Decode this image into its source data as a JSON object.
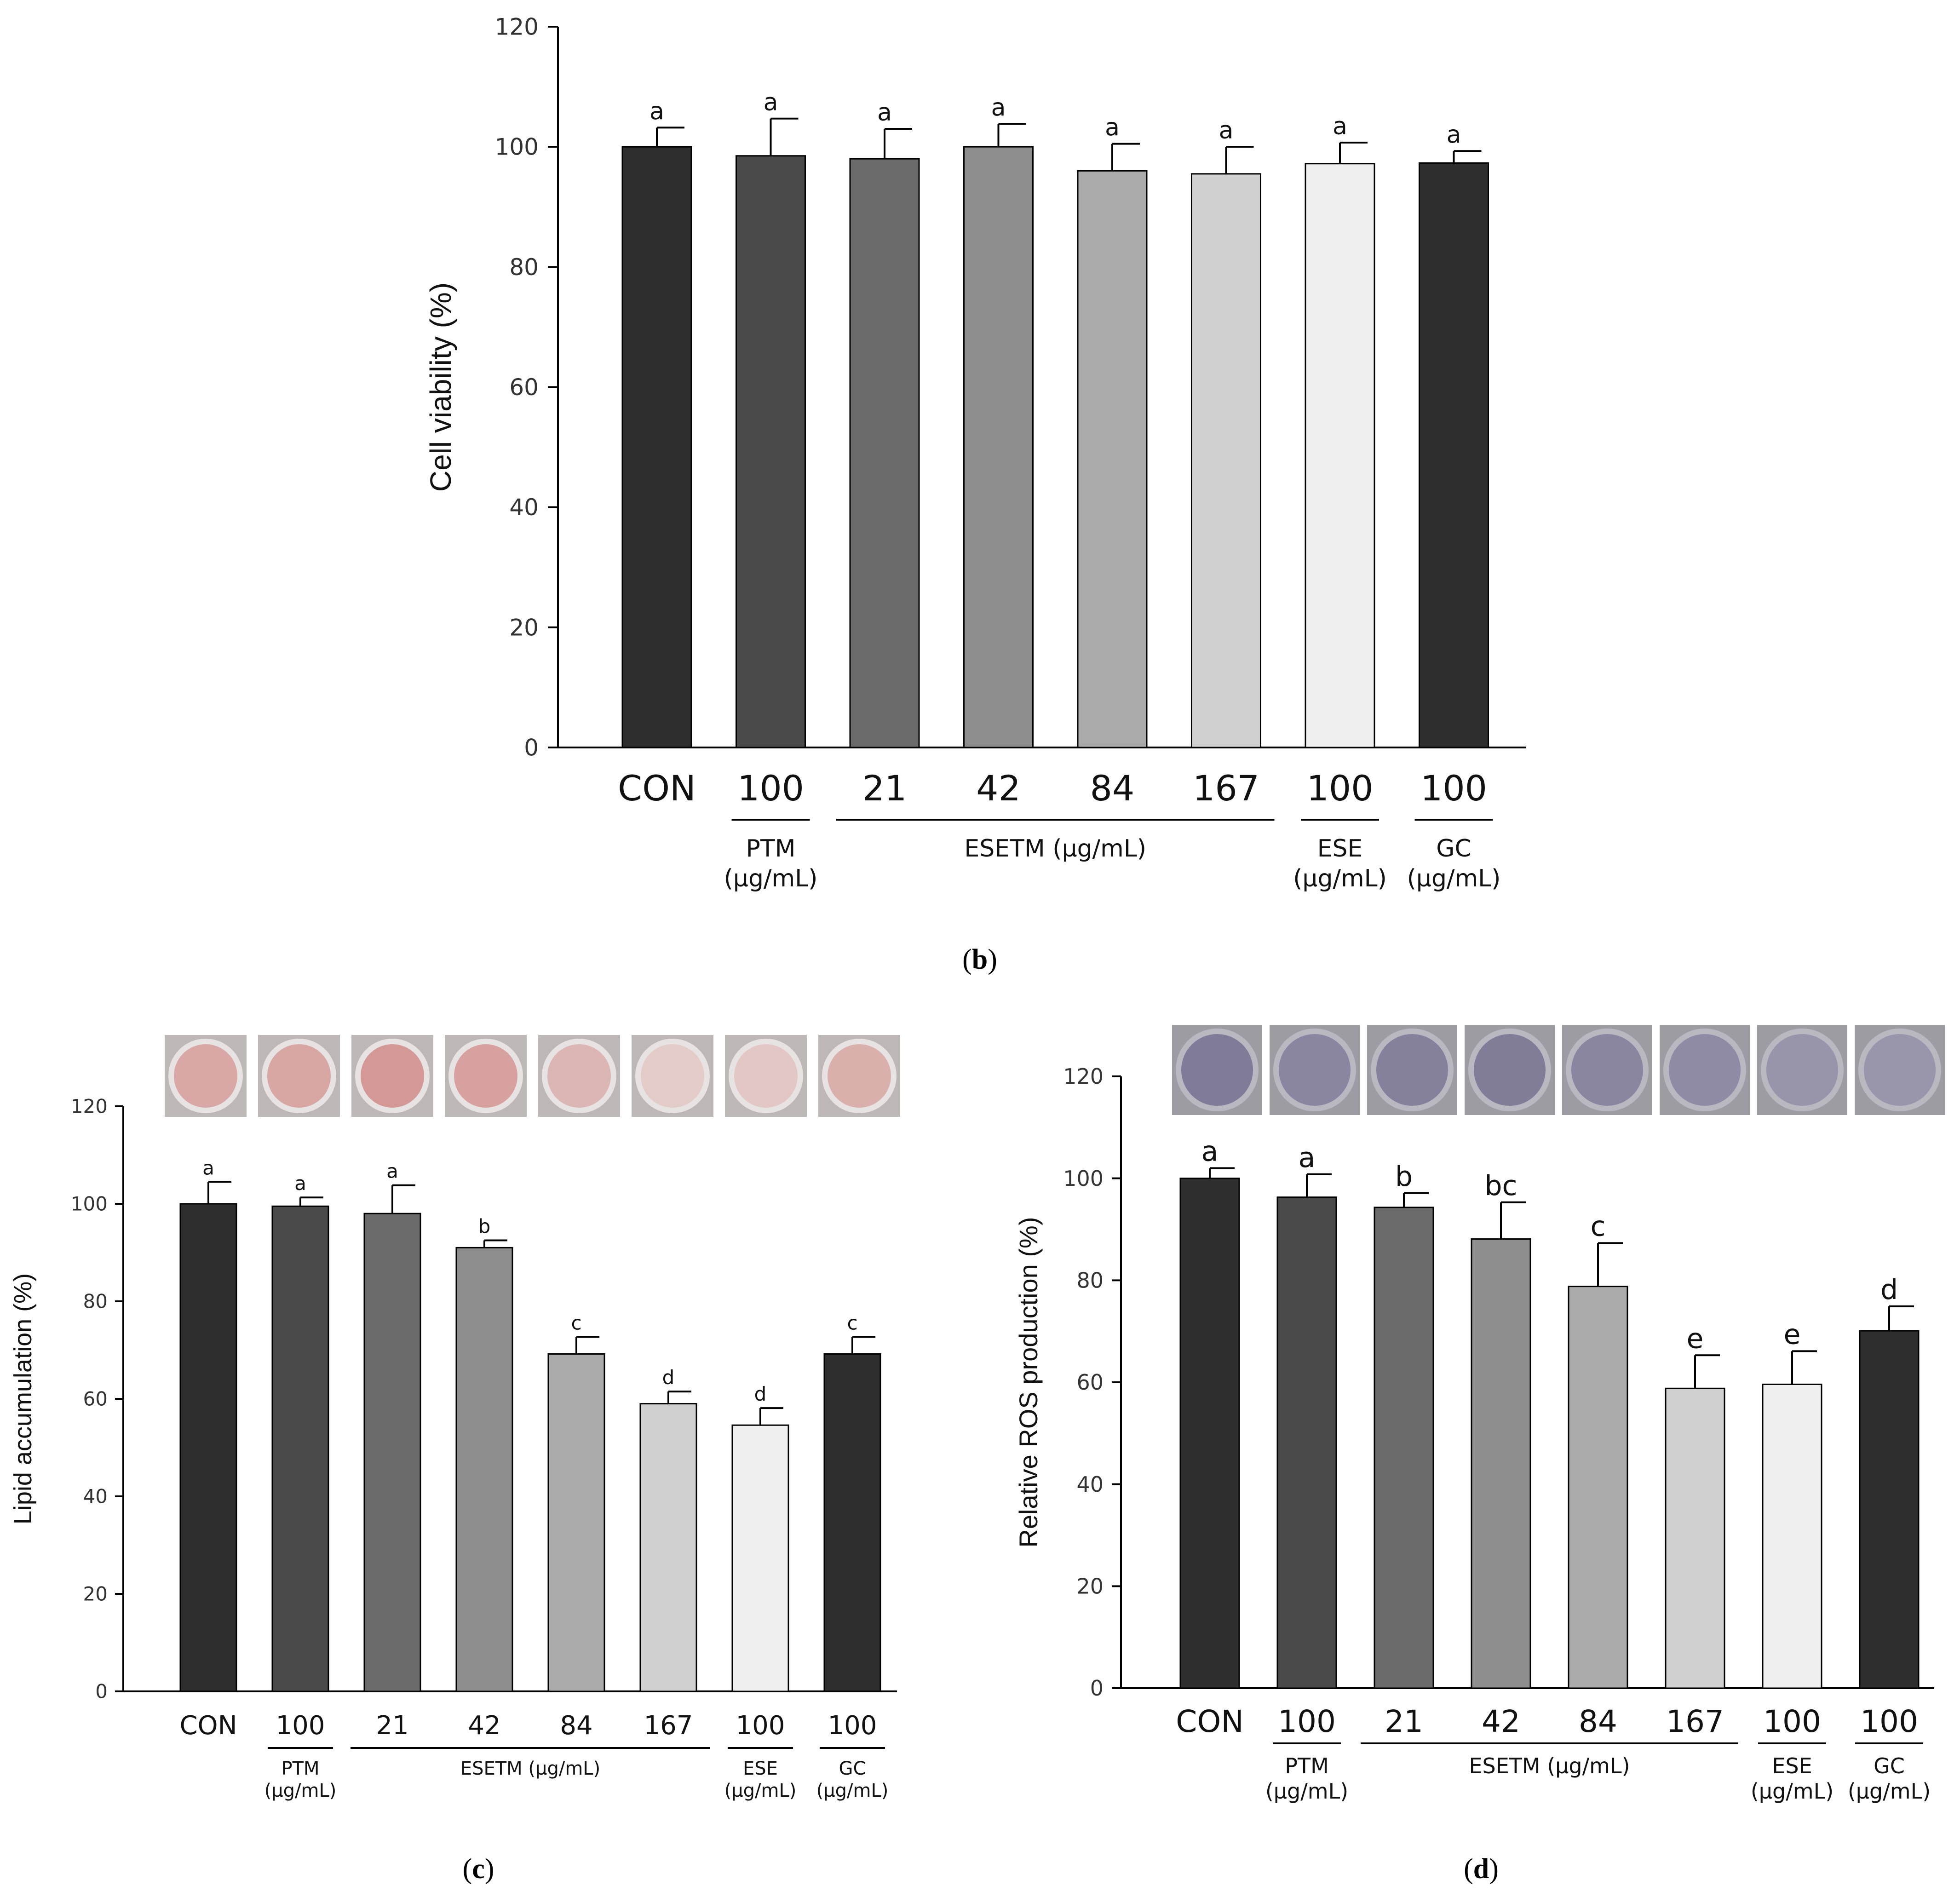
{
  "panel_labels": {
    "b": "b",
    "c": "c",
    "d": "d"
  },
  "colors": {
    "bars": [
      "#2e2e2e",
      "#4a4a4a",
      "#6b6b6b",
      "#8e8e8e",
      "#aaaaaa",
      "#d0d0d0",
      "#efefef",
      "#2e2e2e"
    ],
    "oil_red_wells": [
      "#d9a8a6",
      "#d8a6a3",
      "#d49996",
      "#d6a19e",
      "#dcb6b4",
      "#e3cbc8",
      "#e2c7c4",
      "#dab0ad"
    ],
    "ros_wells": [
      "#7f7b99",
      "#8a86a1",
      "#85819c",
      "#817d98",
      "#8a86a0",
      "#8f8ba4",
      "#9894aa",
      "#9995ab"
    ]
  },
  "chart_data": [
    {
      "id": "b",
      "type": "bar",
      "title": "",
      "ylabel": "Cell viability (%)",
      "xlabel": "",
      "ylim": [
        0,
        120
      ],
      "yticks": [
        "0",
        "20",
        "40",
        "60",
        "80",
        "100",
        "120"
      ],
      "categories": [
        "CON",
        "100",
        "21",
        "42",
        "84",
        "167",
        "100",
        "100"
      ],
      "values": [
        100,
        98.5,
        98,
        100,
        96,
        95.5,
        97.2,
        97.3
      ],
      "errors": [
        3.2,
        6.2,
        5.0,
        3.8,
        4.5,
        4.5,
        3.5,
        2.0
      ],
      "significance": [
        "a",
        "a",
        "a",
        "a",
        "a",
        "a",
        "a",
        "a"
      ],
      "groups": [
        {
          "label": "PTM",
          "unit": "(μg/mL)"
        },
        {
          "label": "ESETM (μg/mL)",
          "unit": ""
        },
        {
          "label": "ESE",
          "unit": "(μg/mL)"
        },
        {
          "label": "GC",
          "unit": "(μg/mL)"
        }
      ]
    },
    {
      "id": "c",
      "type": "bar",
      "title": "",
      "ylabel": "Lipid accumulation (%)",
      "xlabel": "",
      "ylim": [
        0,
        120
      ],
      "yticks": [
        "0",
        "20",
        "40",
        "60",
        "80",
        "100",
        "120"
      ],
      "categories": [
        "CON",
        "100",
        "21",
        "42",
        "84",
        "167",
        "100",
        "100"
      ],
      "values": [
        100,
        99.5,
        98,
        91,
        69.2,
        59,
        54.6,
        69.2
      ],
      "errors": [
        4.5,
        1.8,
        5.8,
        1.5,
        3.5,
        2.5,
        3.5,
        3.5
      ],
      "significance": [
        "a",
        "a",
        "a",
        "b",
        "c",
        "d",
        "d",
        "c"
      ],
      "groups": [
        {
          "label": "PTM",
          "unit": "(μg/mL)"
        },
        {
          "label": "ESETM (μg/mL)",
          "unit": ""
        },
        {
          "label": "ESE",
          "unit": "(μg/mL)"
        },
        {
          "label": "GC",
          "unit": "(μg/mL)"
        }
      ]
    },
    {
      "id": "d",
      "type": "bar",
      "title": "",
      "ylabel": "Relative ROS production (%)",
      "xlabel": "",
      "ylim": [
        0,
        120
      ],
      "yticks": [
        "0",
        "20",
        "40",
        "60",
        "80",
        "100",
        "120"
      ],
      "categories": [
        "CON",
        "100",
        "21",
        "42",
        "84",
        "167",
        "100",
        "100"
      ],
      "values": [
        100,
        96.3,
        94.3,
        88.1,
        78.8,
        58.8,
        59.6,
        70.1
      ],
      "errors": [
        2.0,
        4.5,
        2.8,
        7.2,
        8.5,
        6.5,
        6.5,
        4.8
      ],
      "significance": [
        "a",
        "a",
        "b",
        "bc",
        "c",
        "e",
        "e",
        "d"
      ],
      "groups": [
        {
          "label": "PTM",
          "unit": "(μg/mL)"
        },
        {
          "label": "ESETM (μg/mL)",
          "unit": ""
        },
        {
          "label": "ESE",
          "unit": "(μg/mL)"
        },
        {
          "label": "GC",
          "unit": "(μg/mL)"
        }
      ]
    }
  ]
}
